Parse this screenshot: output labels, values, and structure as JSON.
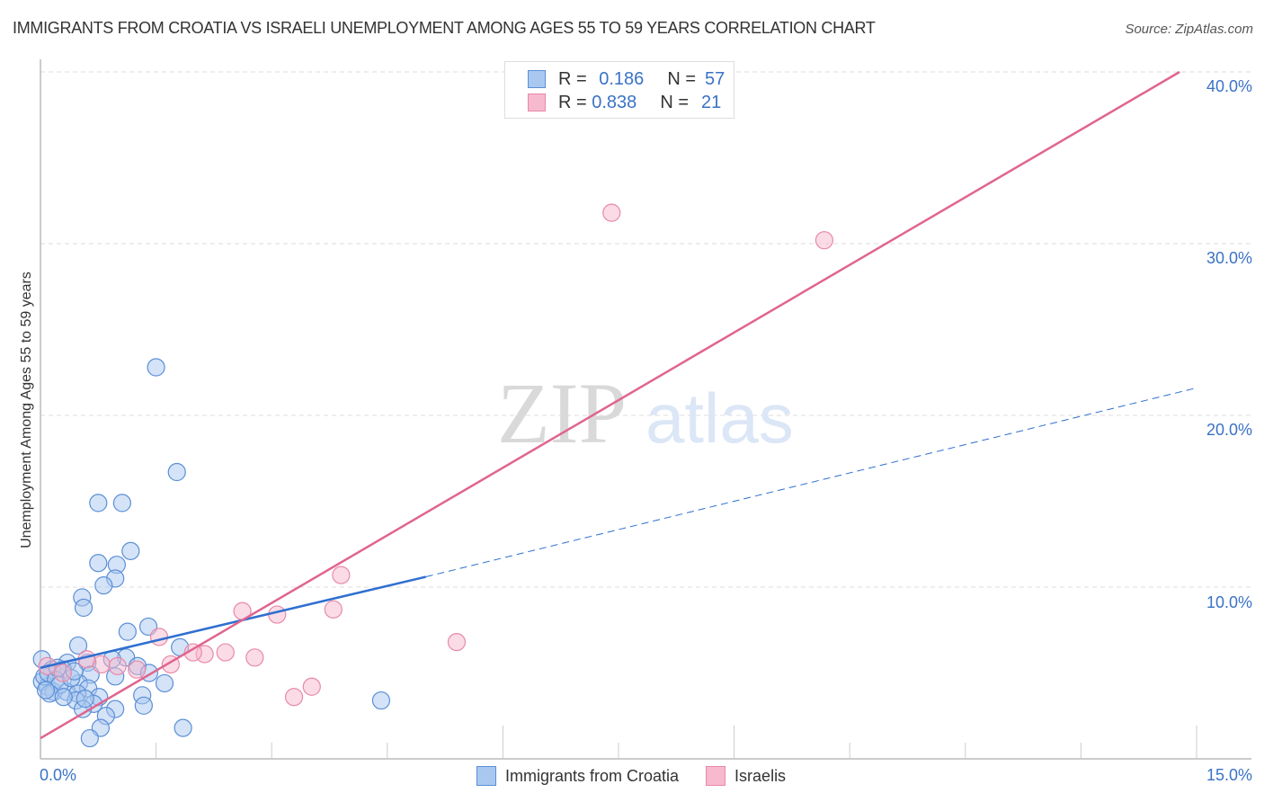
{
  "header": {
    "title": "IMMIGRANTS FROM CROATIA VS ISRAELI UNEMPLOYMENT AMONG AGES 55 TO 59 YEARS CORRELATION CHART",
    "source": "Source: ZipAtlas.com"
  },
  "watermark": {
    "zip": "ZIP",
    "atlas": "atlas"
  },
  "legend_top": {
    "rows": [
      {
        "r_label": "R =",
        "r_value": "0.186",
        "n_label": "N =",
        "n_value": "57"
      },
      {
        "r_label": "R =",
        "r_value": "0.838",
        "n_label": "N =",
        "n_value": "21"
      }
    ]
  },
  "legend_bottom": {
    "items": [
      {
        "label": "Immigrants from Croatia",
        "color": "#a9c8f0"
      },
      {
        "label": "Israelis",
        "color": "#f7b9cd"
      }
    ]
  },
  "axes": {
    "ylabel": "Unemployment Among Ages 55 to 59 years",
    "yticks": [
      "40.0%",
      "30.0%",
      "20.0%",
      "10.0%"
    ],
    "xticks": [
      "0.0%",
      "15.0%"
    ]
  },
  "colors": {
    "blue_fill": "#a9c8f0",
    "blue_stroke": "#5b8fd6",
    "blue_line": "#2f6fd0",
    "pink_fill": "#f7b9cd",
    "pink_stroke": "#e889a8",
    "pink_line": "#e0648e",
    "tick_text": "#3a72c6"
  },
  "chart_data": {
    "type": "scatter",
    "title": "IMMIGRANTS FROM CROATIA VS ISRAELI UNEMPLOYMENT AMONG AGES 55 TO 59 YEARS CORRELATION CHART",
    "xlabel": "",
    "ylabel": "Unemployment Among Ages 55 to 59 years",
    "xlim": [
      0,
      15
    ],
    "ylim": [
      0,
      42
    ],
    "x_ticks": [
      "0.0%",
      "15.0%"
    ],
    "y_ticks": [
      "10.0%",
      "20.0%",
      "30.0%",
      "40.0%"
    ],
    "grid": "horizontal dashed",
    "legend_position": "bottom-center",
    "series": [
      {
        "name": "Immigrants from Croatia",
        "R": 0.186,
        "N": 57,
        "trend": {
          "x0": 0,
          "y0": 5.3,
          "x1": 5.0,
          "y1": 10.6,
          "dashed_extension_to": [
            15.0,
            21.6
          ]
        },
        "points": [
          [
            1.5,
            22.8
          ],
          [
            1.77,
            16.7
          ],
          [
            0.75,
            14.9
          ],
          [
            1.06,
            14.9
          ],
          [
            1.17,
            12.1
          ],
          [
            0.75,
            11.4
          ],
          [
            0.99,
            11.3
          ],
          [
            0.97,
            10.5
          ],
          [
            0.82,
            10.1
          ],
          [
            0.54,
            9.4
          ],
          [
            0.56,
            8.8
          ],
          [
            1.4,
            7.7
          ],
          [
            1.13,
            7.4
          ],
          [
            0.49,
            6.6
          ],
          [
            1.81,
            6.5
          ],
          [
            0.02,
            5.8
          ],
          [
            1.11,
            5.9
          ],
          [
            0.93,
            5.8
          ],
          [
            0.61,
            5.6
          ],
          [
            0.35,
            5.6
          ],
          [
            1.26,
            5.4
          ],
          [
            0.15,
            5.2
          ],
          [
            0.29,
            5.2
          ],
          [
            1.41,
            5.0
          ],
          [
            0.65,
            4.9
          ],
          [
            0.97,
            4.8
          ],
          [
            0.02,
            4.5
          ],
          [
            0.5,
            4.4
          ],
          [
            1.61,
            4.4
          ],
          [
            0.09,
            4.2
          ],
          [
            0.62,
            4.1
          ],
          [
            0.17,
            3.9
          ],
          [
            0.34,
            3.9
          ],
          [
            0.48,
            3.8
          ],
          [
            1.32,
            3.7
          ],
          [
            0.76,
            3.6
          ],
          [
            0.46,
            3.4
          ],
          [
            0.69,
            3.2
          ],
          [
            4.42,
            3.4
          ],
          [
            0.97,
            2.9
          ],
          [
            0.55,
            2.9
          ],
          [
            1.34,
            3.1
          ],
          [
            0.85,
            2.5
          ],
          [
            0.78,
            1.8
          ],
          [
            1.85,
            1.8
          ],
          [
            0.64,
            1.2
          ],
          [
            0.05,
            4.8
          ],
          [
            0.1,
            5.0
          ],
          [
            0.2,
            4.6
          ],
          [
            0.25,
            4.3
          ],
          [
            0.12,
            3.8
          ],
          [
            0.4,
            4.7
          ],
          [
            0.3,
            3.6
          ],
          [
            0.22,
            5.3
          ],
          [
            0.07,
            4.0
          ],
          [
            0.58,
            3.5
          ],
          [
            0.44,
            5.1
          ]
        ]
      },
      {
        "name": "Israelis",
        "R": 0.838,
        "N": 21,
        "trend": {
          "x0": 0,
          "y0": 1.2,
          "x1": 14.78,
          "y1": 40.0
        },
        "points": [
          [
            7.41,
            31.8
          ],
          [
            10.17,
            30.2
          ],
          [
            3.9,
            10.7
          ],
          [
            3.07,
            8.4
          ],
          [
            2.62,
            8.6
          ],
          [
            3.8,
            8.7
          ],
          [
            5.4,
            6.8
          ],
          [
            1.54,
            7.1
          ],
          [
            2.78,
            5.9
          ],
          [
            2.4,
            6.2
          ],
          [
            2.13,
            6.1
          ],
          [
            1.98,
            6.2
          ],
          [
            1.69,
            5.5
          ],
          [
            0.79,
            5.5
          ],
          [
            0.6,
            5.8
          ],
          [
            1.25,
            5.2
          ],
          [
            3.29,
            3.6
          ],
          [
            3.52,
            4.2
          ],
          [
            0.09,
            5.4
          ],
          [
            0.29,
            5.0
          ],
          [
            1.0,
            5.4
          ]
        ]
      }
    ]
  }
}
